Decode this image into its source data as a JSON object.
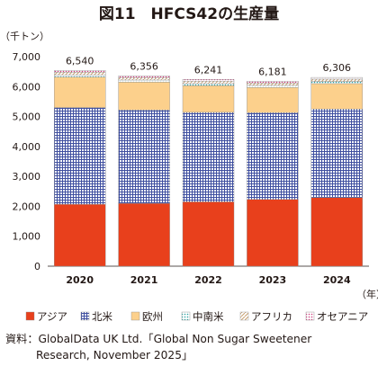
{
  "chart_data": {
    "type": "bar",
    "stacked": true,
    "title": "図11　HFCS42の生産量",
    "ylabel": "（千トン）",
    "xlabel": "（年）",
    "ylim": [
      0,
      7000
    ],
    "yticks": [
      0,
      1000,
      2000,
      3000,
      4000,
      5000,
      6000,
      7000
    ],
    "ytick_labels": [
      "0",
      "1,000",
      "2,000",
      "3,000",
      "4,000",
      "5,000",
      "6,000",
      "7,000"
    ],
    "categories": [
      "2020",
      "2021",
      "2022",
      "2023",
      "2024"
    ],
    "totals": [
      6540,
      6356,
      6241,
      6181,
      6306
    ],
    "total_labels": [
      "6,540",
      "6,356",
      "6,241",
      "6,181",
      "6,306"
    ],
    "legend_position": "bottom",
    "series": [
      {
        "name": "アジア",
        "values": [
          2070,
          2100,
          2150,
          2230,
          2290
        ],
        "color": "#e8401c",
        "pattern": "solid"
      },
      {
        "name": "北米",
        "values": [
          3230,
          3120,
          2990,
          2900,
          2960
        ],
        "color": "#3f4fa0",
        "pattern": "grid"
      },
      {
        "name": "欧州",
        "values": [
          1020,
          930,
          890,
          840,
          850
        ],
        "color": "#fcd08c",
        "pattern": "solid"
      },
      {
        "name": "中南米",
        "values": [
          70,
          70,
          70,
          70,
          70
        ],
        "color": "#2aa0a0",
        "pattern": "dots"
      },
      {
        "name": "アフリカ",
        "values": [
          90,
          80,
          80,
          80,
          80
        ],
        "color": "#c8a070",
        "pattern": "diagonal"
      },
      {
        "name": "オセアニア",
        "values": [
          60,
          56,
          61,
          61,
          56
        ],
        "color": "#d04080",
        "pattern": "dots"
      }
    ]
  },
  "source": {
    "line1": "資料：GlobalData UK Ltd.「Global Non Sugar Sweetener",
    "line2": "Research, November 2025」"
  }
}
